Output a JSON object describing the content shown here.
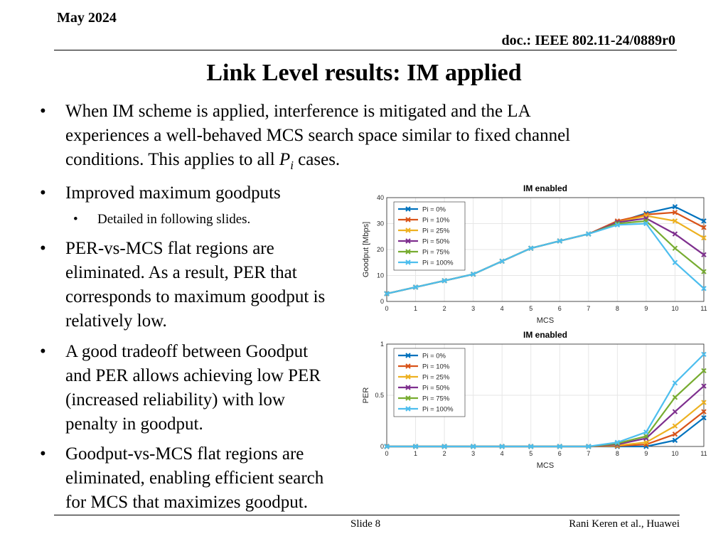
{
  "header": {
    "date": "May 2024",
    "doc": "doc.: IEEE 802.11-24/0889r0"
  },
  "title": "Link Level results: IM applied",
  "bullets": {
    "b1_l1": "When IM scheme is applied, interference is mitigated and the LA",
    "b1_l2": "experiences a well-behaved MCS search space similar to fixed channel",
    "b1_l3a": "conditions. This applies to all ",
    "b1_math": "P",
    "b1_math_sub": "i",
    "b1_l3b": " cases.",
    "b2": "Improved maximum goodputs",
    "b2_sub": "Detailed in following slides.",
    "b3_l1": "PER-vs-MCS flat regions are",
    "b3_l2": "eliminated. As a result, PER that",
    "b3_l3": "corresponds to maximum goodput is",
    "b3_l4": "relatively low.",
    "b4_l1": "A good tradeoff between Goodput",
    "b4_l2": "and PER allows achieving low PER",
    "b4_l3": "(increased reliability) with low",
    "b4_l4": "penalty in goodput.",
    "b5_l1": "Goodput-vs-MCS flat regions are",
    "b5_l2": "eliminated, enabling efficient search",
    "b5_l3": "for MCS that maximizes goodput.",
    "bullet_char": "•"
  },
  "footer": {
    "slide": "Slide 8",
    "author": "Rani Keren et al., Huawei"
  },
  "chart_data": [
    {
      "type": "line",
      "title": "IM enabled",
      "xlabel": "MCS",
      "ylabel": "Goodput [Mbps]",
      "x": [
        0,
        1,
        2,
        3,
        4,
        5,
        6,
        7,
        8,
        9,
        10,
        11
      ],
      "xticks": [
        "0",
        "1",
        "2",
        "3",
        "4",
        "5",
        "6",
        "7",
        "8",
        "9",
        "10",
        "11"
      ],
      "ylim": [
        0,
        40
      ],
      "yticks": [
        "0",
        "10",
        "20",
        "30",
        "40"
      ],
      "grid": true,
      "legend_position": "top-left",
      "series": [
        {
          "name": "Pi = 0%",
          "color": "#0072BD",
          "values": [
            3,
            5.5,
            8,
            10.5,
            15.5,
            20.5,
            23.3,
            26,
            30.5,
            34,
            36.5,
            31
          ]
        },
        {
          "name": "Pi = 10%",
          "color": "#D95319",
          "values": [
            3,
            5.5,
            8,
            10.5,
            15.5,
            20.5,
            23.3,
            26,
            31,
            33.5,
            34.3,
            28.5
          ]
        },
        {
          "name": "Pi = 25%",
          "color": "#EDB120",
          "values": [
            3,
            5.5,
            8,
            10.5,
            15.5,
            20.5,
            23.3,
            26,
            30.5,
            33,
            31,
            24.5
          ]
        },
        {
          "name": "Pi = 50%",
          "color": "#7E2F8E",
          "values": [
            3,
            5.5,
            8,
            10.5,
            15.5,
            20.5,
            23.3,
            26,
            30.5,
            32,
            26,
            18
          ]
        },
        {
          "name": "Pi = 75%",
          "color": "#77AC30",
          "values": [
            3,
            5.5,
            8,
            10.5,
            15.5,
            20.5,
            23.3,
            26,
            30,
            31,
            20.5,
            11.5
          ]
        },
        {
          "name": "Pi = 100%",
          "color": "#4DBEEE",
          "values": [
            3,
            5.5,
            8,
            10.5,
            15.5,
            20.5,
            23.3,
            26,
            29.5,
            30,
            15,
            5
          ]
        }
      ]
    },
    {
      "type": "line",
      "title": "IM enabled",
      "xlabel": "MCS",
      "ylabel": "PER",
      "x": [
        0,
        1,
        2,
        3,
        4,
        5,
        6,
        7,
        8,
        9,
        10,
        11
      ],
      "xticks": [
        "0",
        "1",
        "2",
        "3",
        "4",
        "5",
        "6",
        "7",
        "8",
        "9",
        "10",
        "11"
      ],
      "ylim": [
        0,
        1
      ],
      "yticks": [
        "0",
        "0.5",
        "1"
      ],
      "grid": true,
      "legend_position": "top-left",
      "series": [
        {
          "name": "Pi = 0%",
          "color": "#0072BD",
          "values": [
            0,
            0,
            0,
            0,
            0,
            0,
            0,
            0,
            0,
            0,
            0.06,
            0.28
          ]
        },
        {
          "name": "Pi = 10%",
          "color": "#D95319",
          "values": [
            0,
            0,
            0,
            0,
            0,
            0,
            0,
            0,
            0.005,
            0.02,
            0.12,
            0.34
          ]
        },
        {
          "name": "Pi = 25%",
          "color": "#EDB120",
          "values": [
            0,
            0,
            0,
            0,
            0,
            0,
            0,
            0,
            0.01,
            0.04,
            0.2,
            0.43
          ]
        },
        {
          "name": "Pi = 50%",
          "color": "#7E2F8E",
          "values": [
            0,
            0,
            0,
            0,
            0,
            0,
            0,
            0,
            0.02,
            0.08,
            0.34,
            0.59
          ]
        },
        {
          "name": "Pi = 75%",
          "color": "#77AC30",
          "values": [
            0,
            0,
            0,
            0,
            0,
            0,
            0,
            0,
            0.03,
            0.1,
            0.48,
            0.74
          ]
        },
        {
          "name": "Pi = 100%",
          "color": "#4DBEEE",
          "values": [
            0,
            0,
            0,
            0,
            0,
            0,
            0,
            0,
            0.04,
            0.14,
            0.62,
            0.9
          ]
        }
      ]
    }
  ]
}
